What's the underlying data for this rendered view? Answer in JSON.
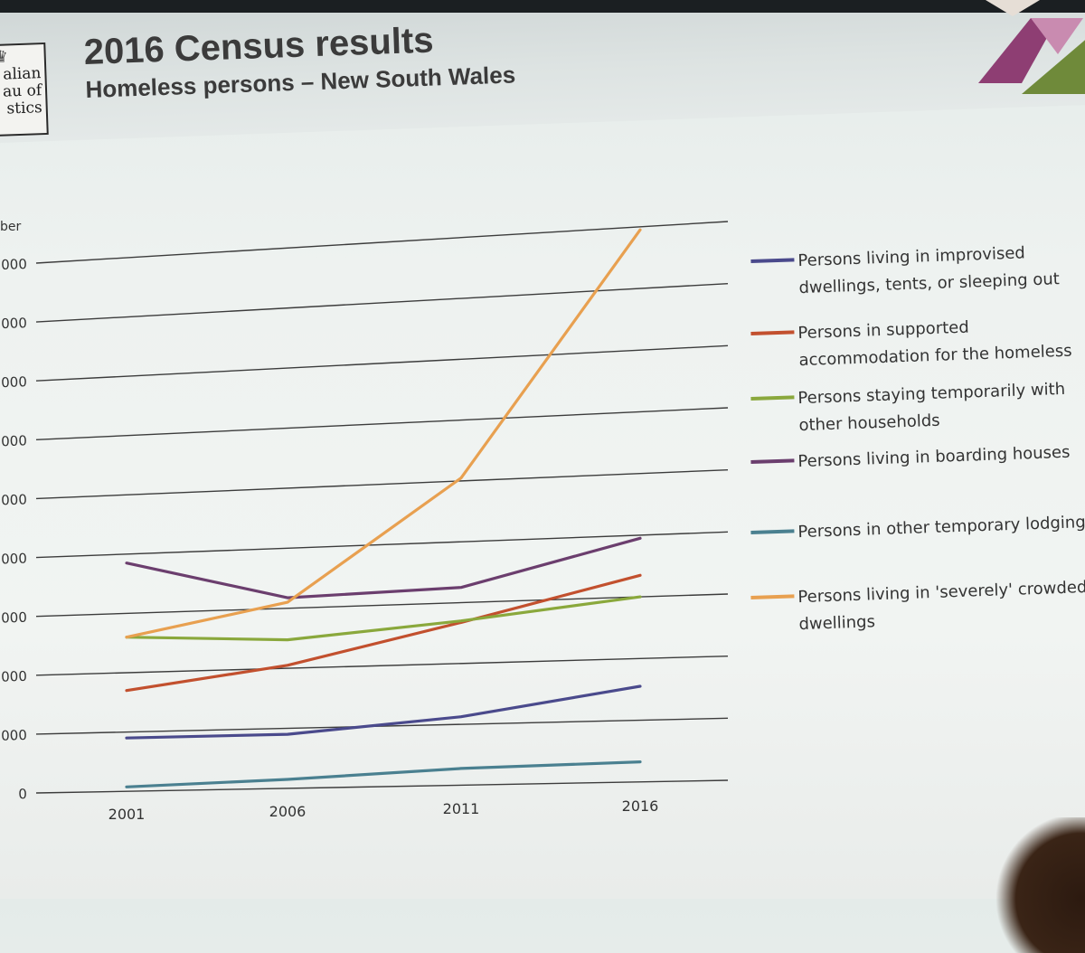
{
  "slide": {
    "title": "2016 Census results",
    "subtitle": "Homeless persons – New South Wales",
    "logo_text": [
      "alian",
      "au of",
      "stics"
    ]
  },
  "chart_data": {
    "type": "line",
    "ylabel": "ber",
    "categories": [
      "2001",
      "2006",
      "2011",
      "2016"
    ],
    "ylim": [
      0,
      18000
    ],
    "yticks": [
      {
        "value": 0,
        "label": "0"
      },
      {
        "value": 2000,
        "label": "000"
      },
      {
        "value": 4000,
        "label": "000"
      },
      {
        "value": 6000,
        "label": "000"
      },
      {
        "value": 8000,
        "label": "000"
      },
      {
        "value": 10000,
        "label": "000"
      },
      {
        "value": 12000,
        "label": "000"
      },
      {
        "value": 14000,
        "label": "000"
      },
      {
        "value": 16000,
        "label": "000"
      },
      {
        "value": 18000,
        "label": "000"
      }
    ],
    "legend_position": "right",
    "grid": true,
    "series": [
      {
        "name": "Persons living in improvised dwellings, tents, or sleeping out",
        "color": "#4a4a8c",
        "values": [
          1800,
          1800,
          2250,
          3100
        ]
      },
      {
        "name": "Persons in supported accommodation for the homeless",
        "color": "#c2502e",
        "values": [
          3400,
          4100,
          5350,
          6700
        ]
      },
      {
        "name": "Persons staying temporarily with other households",
        "color": "#8aa83c",
        "values": [
          5200,
          4950,
          5400,
          6000
        ]
      },
      {
        "name": "Persons living in boarding houses",
        "color": "#6b3e6e",
        "values": [
          7700,
          6350,
          6500,
          7900
        ]
      },
      {
        "name": "Persons in other temporary lodgings",
        "color": "#4a8090",
        "values": [
          150,
          300,
          550,
          650
        ]
      },
      {
        "name": "Persons living in 'severely' crowded dwellings",
        "color": "#e8a050",
        "values": [
          5200,
          6200,
          10100,
          17900
        ]
      }
    ]
  }
}
